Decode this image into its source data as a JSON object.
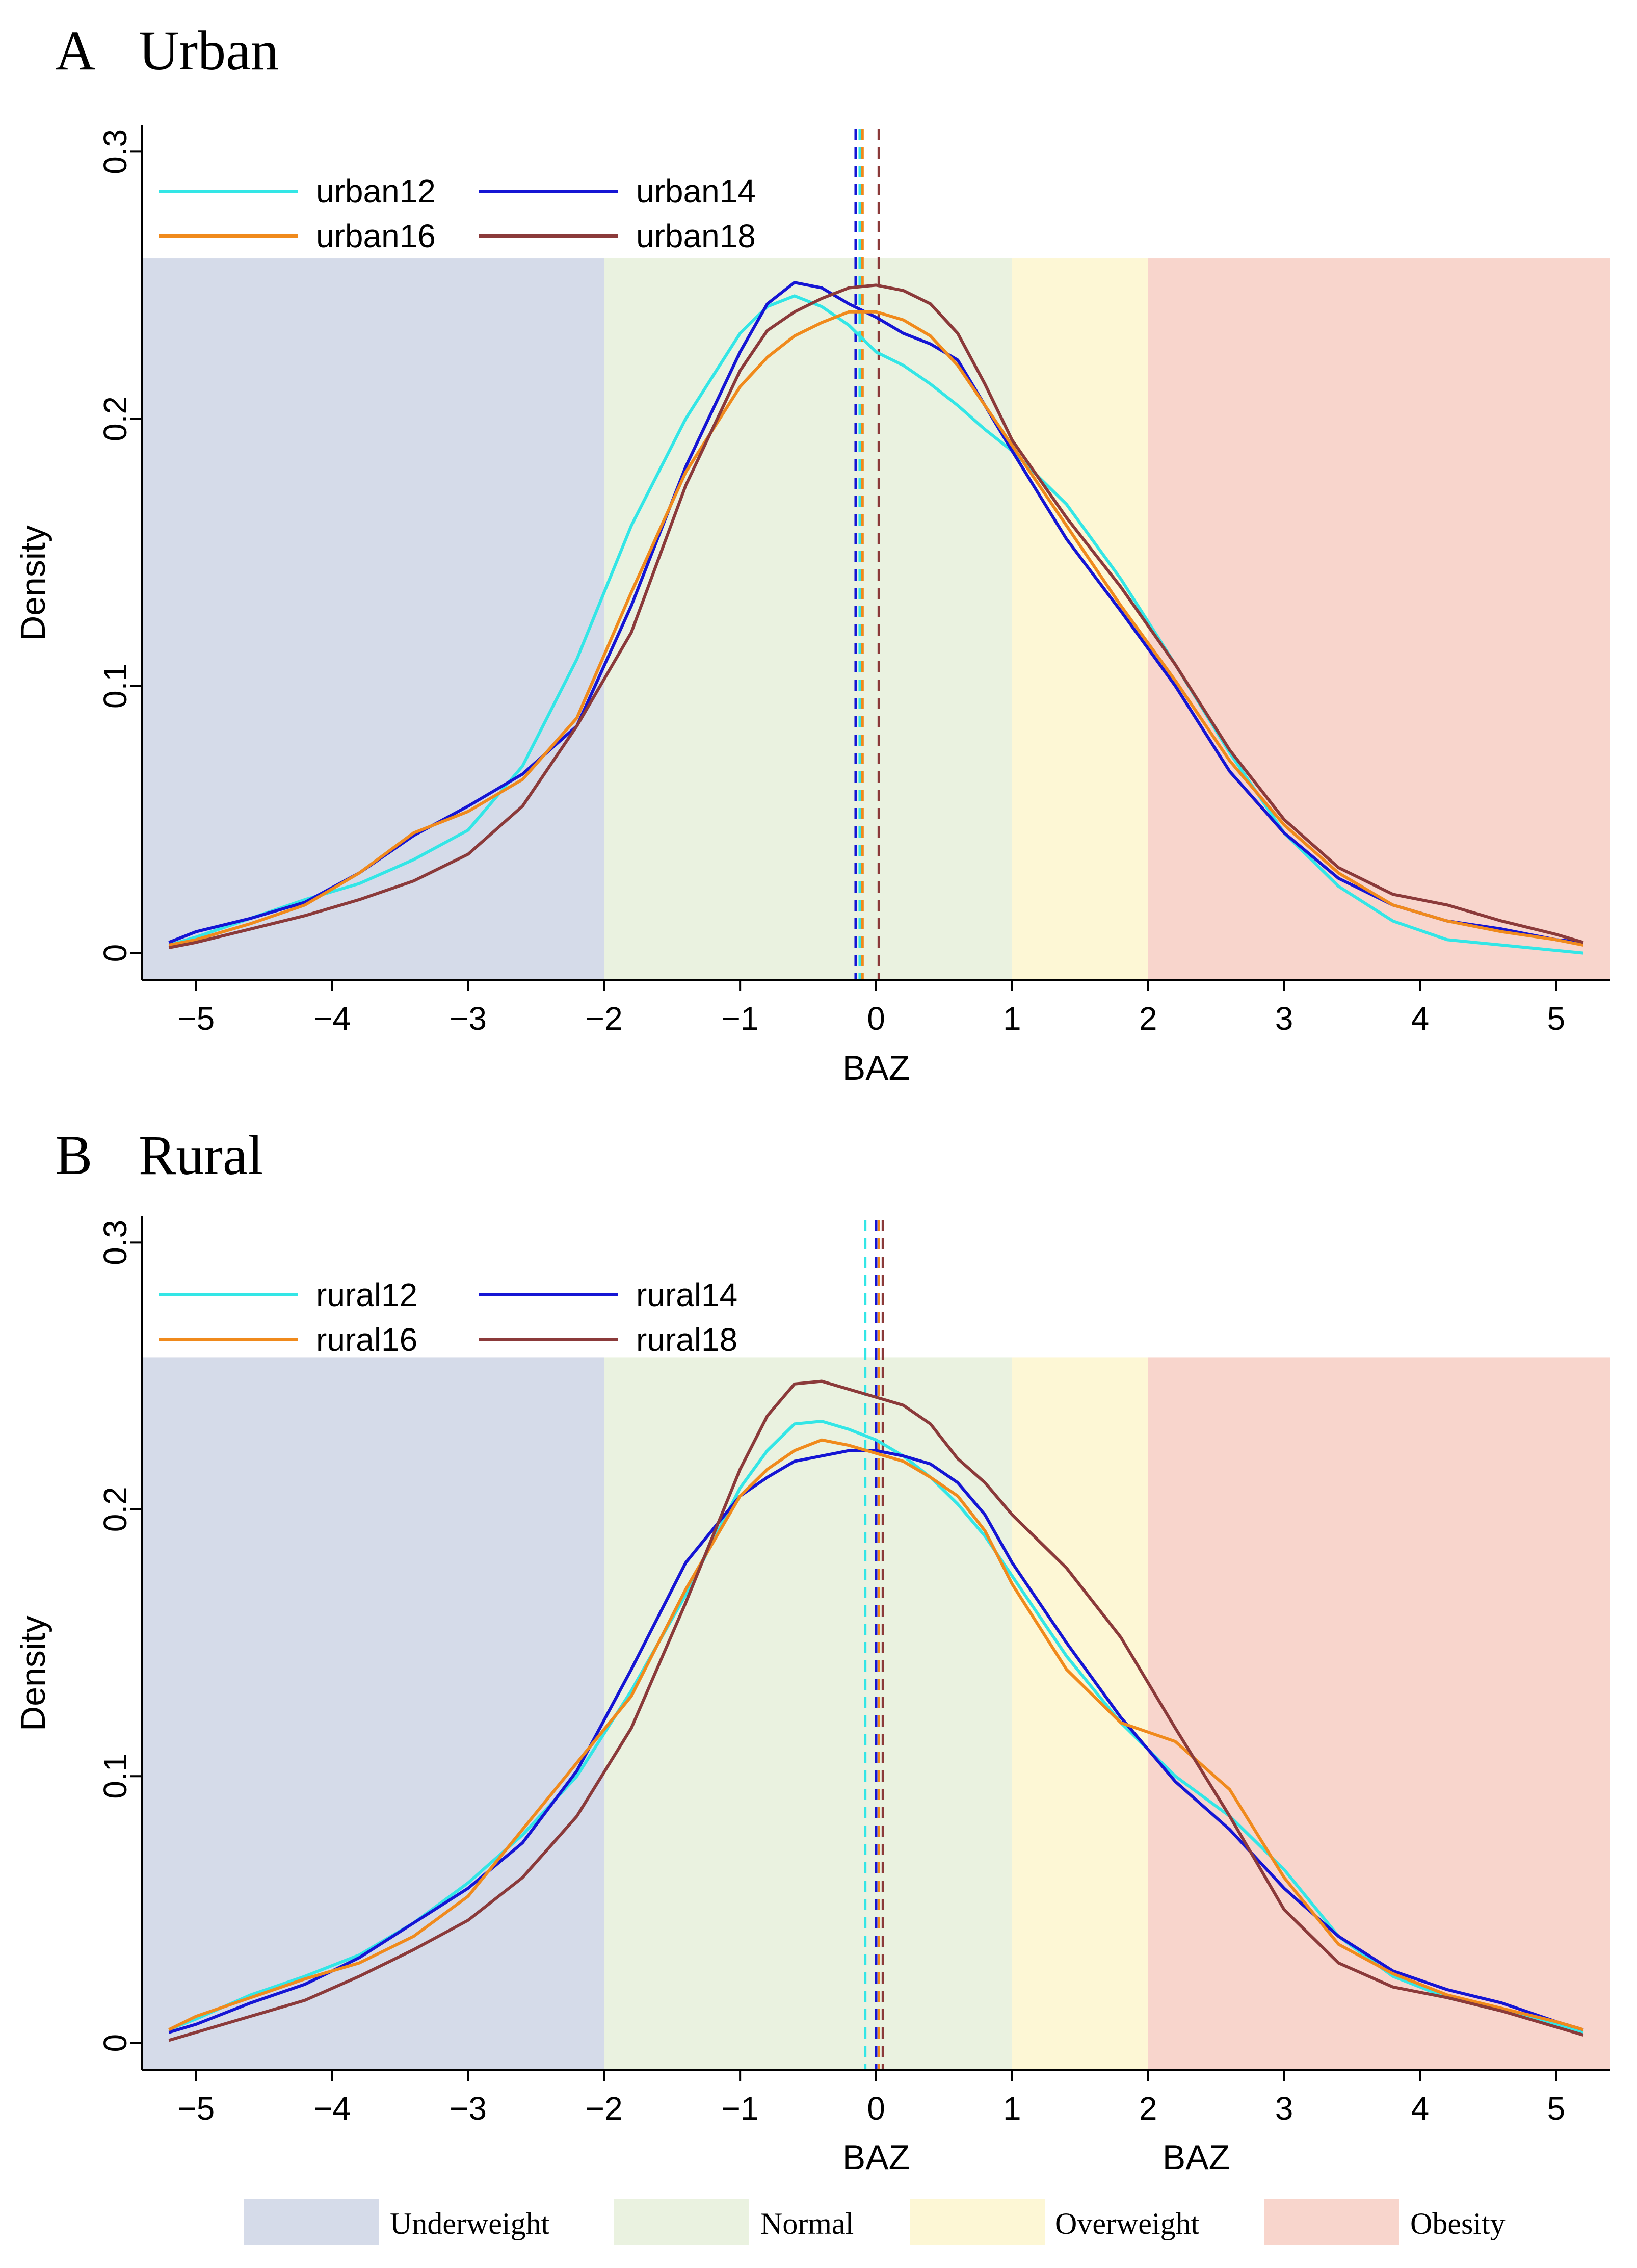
{
  "figure": {
    "bottom_legend": [
      {
        "label": "Underweight",
        "color": "#d5dbe9"
      },
      {
        "label": "Normal",
        "color": "#eaf2e0"
      },
      {
        "label": "Overweight",
        "color": "#fdf7d5"
      },
      {
        "label": "Obesity",
        "color": "#f8d5cc"
      }
    ],
    "extra_xlabel": "BAZ"
  },
  "chart_data": [
    {
      "type": "line",
      "panel_letter": "A",
      "title": "Urban",
      "xlabel": "BAZ",
      "ylabel": "Density",
      "xlim": [
        -5.4,
        5.4
      ],
      "ylim": [
        -0.01,
        0.31
      ],
      "xticks": [
        -5,
        -4,
        -3,
        -2,
        -1,
        0,
        1,
        2,
        3,
        4,
        5
      ],
      "xtick_labels": [
        "−5",
        "−4",
        "−3",
        "−2",
        "−1",
        "0",
        "1",
        "2",
        "3",
        "4",
        "5"
      ],
      "yticks": [
        0,
        0.1,
        0.2,
        0.3
      ],
      "ytick_labels": [
        "0",
        "0.1",
        "0.2",
        "0.3"
      ],
      "band_top": 0.26,
      "bands": [
        {
          "label": "Underweight",
          "from": -5.4,
          "to": -2,
          "color": "#d5dbe9"
        },
        {
          "label": "Normal",
          "from": -2,
          "to": 1,
          "color": "#eaf2e0"
        },
        {
          "label": "Overweight",
          "from": 1,
          "to": 2,
          "color": "#fdf7d5"
        },
        {
          "label": "Obesity",
          "from": 2,
          "to": 5.4,
          "color": "#f8d5cc"
        }
      ],
      "x": [
        -5.2,
        -5.0,
        -4.6,
        -4.2,
        -3.8,
        -3.4,
        -3.0,
        -2.6,
        -2.2,
        -1.8,
        -1.4,
        -1.0,
        -0.8,
        -0.6,
        -0.4,
        -0.2,
        0.0,
        0.2,
        0.4,
        0.6,
        0.8,
        1.0,
        1.4,
        1.8,
        2.2,
        2.6,
        3.0,
        3.4,
        3.8,
        4.2,
        4.6,
        5.0,
        5.2
      ],
      "series": [
        {
          "name": "urban12",
          "color": "#33e6e6",
          "mean": -0.12,
          "values": [
            0.003,
            0.006,
            0.013,
            0.02,
            0.026,
            0.035,
            0.046,
            0.07,
            0.11,
            0.16,
            0.2,
            0.232,
            0.242,
            0.246,
            0.242,
            0.235,
            0.225,
            0.22,
            0.213,
            0.205,
            0.196,
            0.188,
            0.168,
            0.14,
            0.108,
            0.075,
            0.045,
            0.025,
            0.012,
            0.005,
            0.003,
            0.001,
            0.0
          ]
        },
        {
          "name": "urban14",
          "color": "#1515d4",
          "mean": -0.15,
          "values": [
            0.004,
            0.008,
            0.013,
            0.019,
            0.03,
            0.044,
            0.055,
            0.067,
            0.085,
            0.13,
            0.182,
            0.225,
            0.243,
            0.251,
            0.249,
            0.243,
            0.238,
            0.232,
            0.228,
            0.222,
            0.205,
            0.188,
            0.155,
            0.128,
            0.1,
            0.068,
            0.045,
            0.028,
            0.018,
            0.012,
            0.009,
            0.005,
            0.004
          ]
        },
        {
          "name": "urban16",
          "color": "#f08a1c",
          "mean": -0.1,
          "values": [
            0.003,
            0.005,
            0.011,
            0.018,
            0.03,
            0.045,
            0.053,
            0.065,
            0.088,
            0.135,
            0.18,
            0.212,
            0.223,
            0.231,
            0.236,
            0.24,
            0.24,
            0.237,
            0.231,
            0.22,
            0.205,
            0.19,
            0.16,
            0.13,
            0.102,
            0.072,
            0.048,
            0.03,
            0.018,
            0.012,
            0.008,
            0.005,
            0.003
          ]
        },
        {
          "name": "urban18",
          "color": "#8b3a3a",
          "mean": 0.02,
          "values": [
            0.002,
            0.004,
            0.009,
            0.014,
            0.02,
            0.027,
            0.037,
            0.055,
            0.085,
            0.12,
            0.175,
            0.218,
            0.233,
            0.24,
            0.245,
            0.249,
            0.25,
            0.248,
            0.243,
            0.232,
            0.213,
            0.192,
            0.163,
            0.137,
            0.108,
            0.076,
            0.05,
            0.032,
            0.022,
            0.018,
            0.012,
            0.007,
            0.004
          ]
        }
      ]
    },
    {
      "type": "line",
      "panel_letter": "B",
      "title": "Rural",
      "xlabel": "BAZ",
      "ylabel": "Density",
      "xlim": [
        -5.4,
        5.4
      ],
      "ylim": [
        -0.01,
        0.31
      ],
      "xticks": [
        -5,
        -4,
        -3,
        -2,
        -1,
        0,
        1,
        2,
        3,
        4,
        5
      ],
      "xtick_labels": [
        "−5",
        "−4",
        "−3",
        "−2",
        "−1",
        "0",
        "1",
        "2",
        "3",
        "4",
        "5"
      ],
      "yticks": [
        0,
        0.1,
        0.2,
        0.3
      ],
      "ytick_labels": [
        "0",
        "0.1",
        "0.2",
        "0.3"
      ],
      "band_top": 0.257,
      "bands": [
        {
          "label": "Underweight",
          "from": -5.4,
          "to": -2,
          "color": "#d5dbe9"
        },
        {
          "label": "Normal",
          "from": -2,
          "to": 1,
          "color": "#eaf2e0"
        },
        {
          "label": "Overweight",
          "from": 1,
          "to": 2,
          "color": "#fdf7d5"
        },
        {
          "label": "Obesity",
          "from": 2,
          "to": 5.4,
          "color": "#f8d5cc"
        }
      ],
      "x": [
        -5.2,
        -5.0,
        -4.6,
        -4.2,
        -3.8,
        -3.4,
        -3.0,
        -2.6,
        -2.2,
        -1.8,
        -1.4,
        -1.0,
        -0.8,
        -0.6,
        -0.4,
        -0.2,
        0.0,
        0.2,
        0.4,
        0.6,
        0.8,
        1.0,
        1.4,
        1.8,
        2.2,
        2.6,
        3.0,
        3.4,
        3.8,
        4.2,
        4.6,
        5.0,
        5.2
      ],
      "series": [
        {
          "name": "rural12",
          "color": "#33e6e6",
          "mean": -0.08,
          "values": [
            0.005,
            0.009,
            0.018,
            0.025,
            0.033,
            0.045,
            0.06,
            0.078,
            0.1,
            0.132,
            0.168,
            0.208,
            0.222,
            0.232,
            0.233,
            0.23,
            0.226,
            0.22,
            0.212,
            0.202,
            0.19,
            0.175,
            0.145,
            0.12,
            0.1,
            0.085,
            0.065,
            0.04,
            0.025,
            0.017,
            0.012,
            0.007,
            0.004
          ]
        },
        {
          "name": "rural14",
          "color": "#1515d4",
          "mean": 0.0,
          "values": [
            0.004,
            0.007,
            0.015,
            0.022,
            0.032,
            0.045,
            0.058,
            0.075,
            0.102,
            0.14,
            0.18,
            0.205,
            0.212,
            0.218,
            0.22,
            0.222,
            0.222,
            0.22,
            0.217,
            0.21,
            0.198,
            0.18,
            0.15,
            0.122,
            0.098,
            0.08,
            0.058,
            0.04,
            0.027,
            0.02,
            0.015,
            0.008,
            0.005
          ]
        },
        {
          "name": "rural16",
          "color": "#f08a1c",
          "mean": 0.02,
          "values": [
            0.005,
            0.01,
            0.017,
            0.024,
            0.03,
            0.04,
            0.055,
            0.08,
            0.105,
            0.13,
            0.17,
            0.205,
            0.215,
            0.222,
            0.226,
            0.224,
            0.221,
            0.218,
            0.212,
            0.205,
            0.192,
            0.172,
            0.14,
            0.12,
            0.113,
            0.095,
            0.062,
            0.037,
            0.026,
            0.018,
            0.013,
            0.008,
            0.005
          ]
        },
        {
          "name": "rural18",
          "color": "#8b3a3a",
          "mean": 0.05,
          "values": [
            0.001,
            0.004,
            0.01,
            0.016,
            0.025,
            0.035,
            0.046,
            0.062,
            0.085,
            0.118,
            0.165,
            0.215,
            0.235,
            0.247,
            0.248,
            0.245,
            0.242,
            0.239,
            0.232,
            0.219,
            0.21,
            0.198,
            0.178,
            0.152,
            0.118,
            0.085,
            0.05,
            0.03,
            0.021,
            0.017,
            0.012,
            0.006,
            0.003
          ]
        }
      ]
    }
  ]
}
